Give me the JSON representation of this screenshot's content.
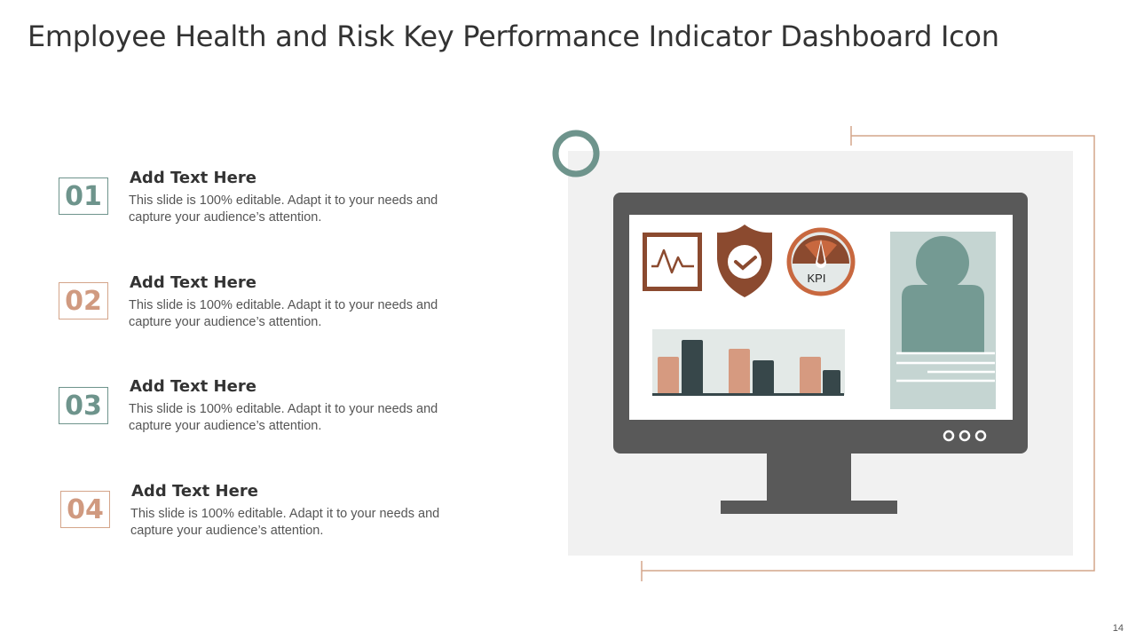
{
  "title": "Employee Health and Risk Key Performance Indicator Dashboard Icon",
  "items": [
    {
      "number": "01",
      "heading": "Add Text Here",
      "text": "This slide is 100% editable. Adapt it to your needs and capture your audience’s attention.",
      "color": "#6e948c"
    },
    {
      "number": "02",
      "heading": "Add Text Here",
      "text": "This slide is 100% editable. Adapt it to your needs and capture your audience’s attention.",
      "color": "#d09a80"
    },
    {
      "number": "03",
      "heading": "Add Text Here",
      "text": "This slide is 100% editable. Adapt it to your needs and capture your audience’s attention.",
      "color": "#6e948c"
    },
    {
      "number": "04",
      "heading": "Add Text Here",
      "text": "This slide is 100% editable. Adapt it to your needs and capture your audience’s attention.",
      "color": "#d09a80"
    }
  ],
  "illustration": {
    "kpi_label": "KPI",
    "icons": [
      "ecg-icon",
      "shield-check-icon",
      "kpi-gauge-icon",
      "user-profile-icon",
      "bar-chart-icon",
      "monitor-icon"
    ]
  },
  "colors": {
    "accent_teal": "#6e948c",
    "accent_peach": "#d4a58a",
    "brown": "#8b4a2f",
    "monitor": "#595959"
  },
  "page_number": "14"
}
